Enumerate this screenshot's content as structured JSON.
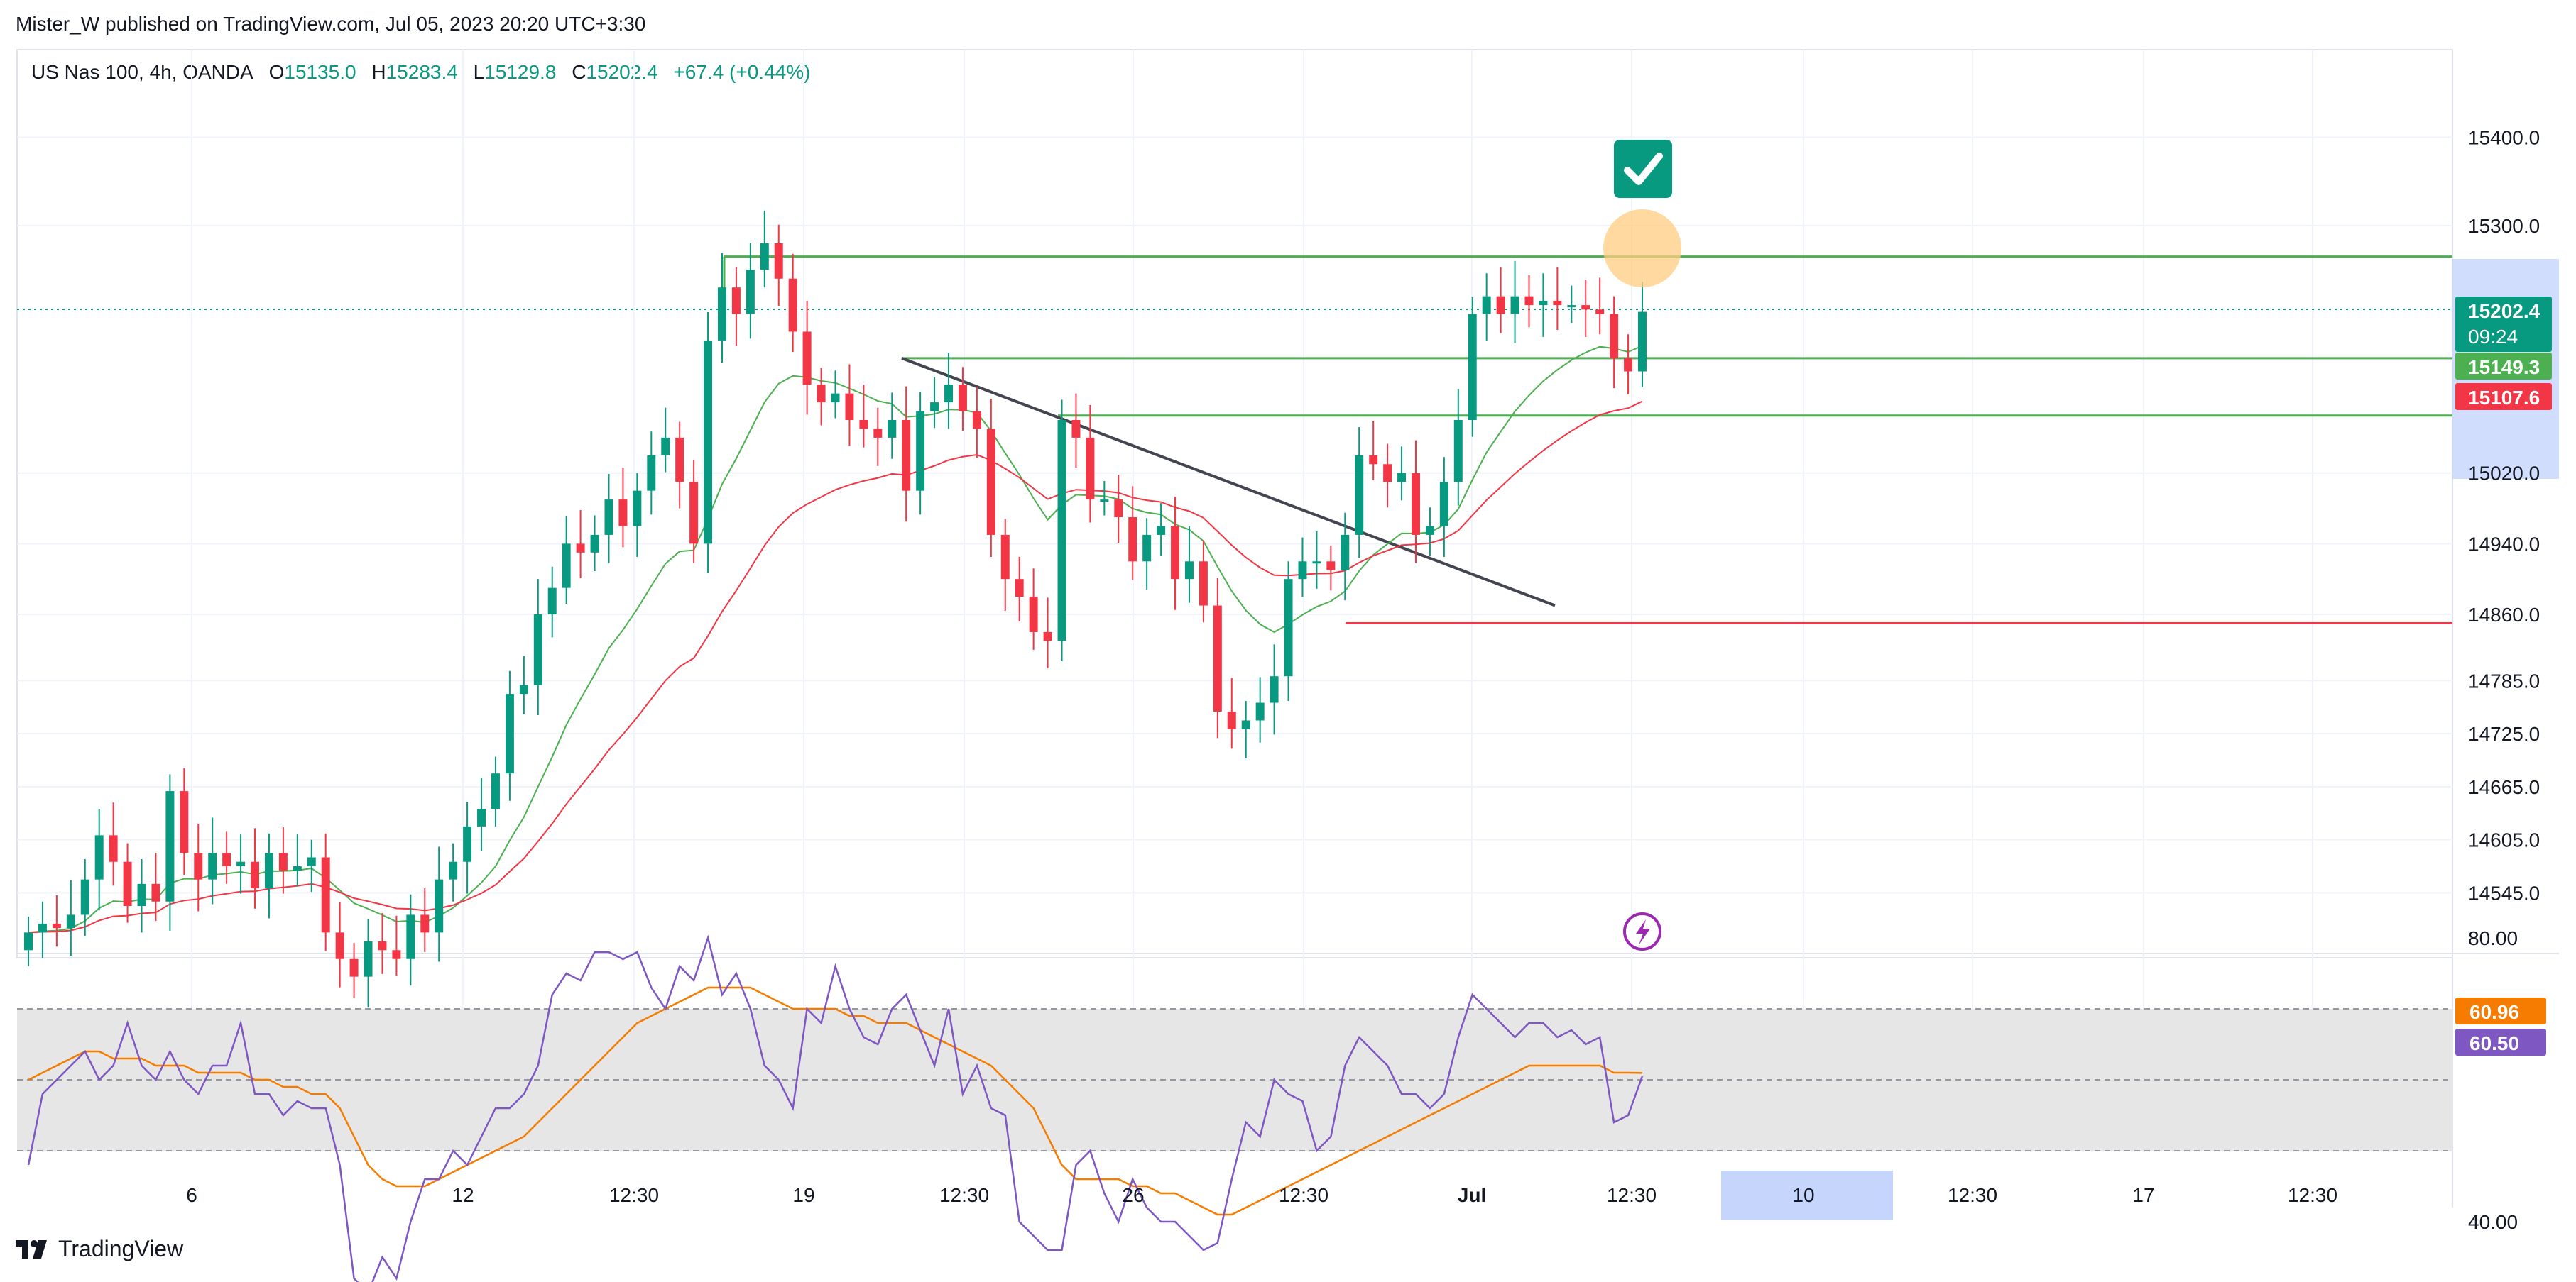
{
  "published": "Mister_W published on TradingView.com, Jul 05, 2023 20:20 UTC+3:30",
  "legend": {
    "symbol": "US Nas 100, 4h, OANDA",
    "o_label": "O",
    "o": "15135.0",
    "h_label": "H",
    "h": "15283.4",
    "l_label": "L",
    "l": "15129.8",
    "c_label": "C",
    "c": "15202.4",
    "change": "+67.4 (+0.44%)"
  },
  "price_tags": {
    "last": "15202.4",
    "countdown": "09:24",
    "ema_fast": "15149.3",
    "ema_slow": "15107.6"
  },
  "rsi_tags": {
    "ma": "60.96",
    "rsi": "60.50"
  },
  "brand": "TradingView",
  "colors": {
    "up": "#089981",
    "down": "#f23645",
    "level_line": "#4caf50",
    "red_level": "#f23645",
    "trend_line": "#434651",
    "rsi_line": "#7e57c2",
    "rsi_ma": "#f57c00",
    "ema_fast": "#4caf50",
    "ema_slow": "#f23645"
  },
  "icons": {
    "check": "check-badge-icon",
    "flash": "lightning-icon",
    "logo": "tradingview-logo-icon"
  },
  "chart_data": [
    {
      "type": "candlestick",
      "title": "US Nas 100, 4h, OANDA",
      "y_axis_ticks": [
        "15400.0",
        "15300.0",
        "15020.0",
        "14940.0",
        "14860.0",
        "14785.0",
        "14725.0",
        "14665.0",
        "14605.0",
        "14545.0"
      ],
      "x_axis_ticks": [
        "6",
        "12",
        "12:30",
        "19",
        "12:30",
        "26",
        "12:30",
        "Jul",
        "12:30",
        "10",
        "12:30",
        "17",
        "12:30"
      ],
      "highlighted_x_tick": "10",
      "ylim": [
        14500,
        15500
      ],
      "candles_close": [
        14500,
        14510,
        14505,
        14520,
        14560,
        14610,
        14580,
        14530,
        14555,
        14535,
        14660,
        14590,
        14560,
        14590,
        14575,
        14580,
        14550,
        14590,
        14570,
        14575,
        14585,
        14500,
        14470,
        14450,
        14490,
        14480,
        14470,
        14520,
        14500,
        14560,
        14580,
        14620,
        14640,
        14680,
        14770,
        14780,
        14860,
        14890,
        14940,
        14930,
        14950,
        14990,
        14960,
        15000,
        15040,
        15060,
        15010,
        14940,
        15170,
        15230,
        15200,
        15250,
        15280,
        15240,
        15180,
        15120,
        15100,
        15110,
        15080,
        15070,
        15060,
        15080,
        15000,
        15090,
        15100,
        15120,
        15090,
        15070,
        14950,
        14900,
        14880,
        14840,
        14830,
        15080,
        15060,
        14990,
        14990,
        14970,
        14920,
        14950,
        14960,
        14900,
        14920,
        14870,
        14750,
        14730,
        14740,
        14760,
        14790,
        14900,
        14920,
        14920,
        14910,
        14950,
        15040,
        15030,
        15010,
        15020,
        14950,
        14960,
        15010,
        15080,
        15200,
        15220,
        15200,
        15220,
        15210,
        15215,
        15210,
        15210,
        15205,
        15200,
        15150,
        15135,
        15202.4
      ],
      "candles_open": [
        14480,
        14500,
        14510,
        14505,
        14520,
        14560,
        14610,
        14580,
        14530,
        14555,
        14535,
        14660,
        14590,
        14560,
        14590,
        14575,
        14580,
        14550,
        14590,
        14570,
        14575,
        14585,
        14500,
        14470,
        14450,
        14490,
        14480,
        14470,
        14520,
        14500,
        14560,
        14580,
        14620,
        14640,
        14680,
        14770,
        14780,
        14860,
        14890,
        14940,
        14930,
        14950,
        14990,
        14960,
        15000,
        15040,
        15060,
        15010,
        14940,
        15170,
        15230,
        15200,
        15250,
        15280,
        15240,
        15180,
        15120,
        15100,
        15110,
        15080,
        15070,
        15060,
        15080,
        15000,
        15090,
        15100,
        15120,
        15090,
        15070,
        14950,
        14900,
        14880,
        14840,
        14830,
        15080,
        15060,
        14990,
        14990,
        14970,
        14920,
        14950,
        14960,
        14900,
        14920,
        14870,
        14750,
        14730,
        14740,
        14760,
        14790,
        14900,
        14920,
        14920,
        14910,
        14950,
        15040,
        15030,
        15010,
        15020,
        14950,
        14960,
        15010,
        15080,
        15200,
        15220,
        15200,
        15220,
        15210,
        15215,
        15210,
        15210,
        15205,
        15200,
        15150,
        15135
      ],
      "levels": [
        15265,
        15150,
        15085,
        14850
      ],
      "trend_line": [
        [
          1270,
          15150
        ],
        [
          2190,
          14870
        ]
      ]
    },
    {
      "type": "line",
      "title": "RSI",
      "y_axis_ticks": [
        "80.00",
        "40.00"
      ],
      "ylim": [
        30,
        85
      ],
      "band": [
        30,
        70
      ],
      "midline": 50,
      "series": [
        {
          "values": [
            48,
            58,
            60,
            62,
            64,
            60,
            62,
            68,
            62,
            60,
            64,
            60,
            58,
            62,
            62,
            68,
            58,
            58,
            55,
            57,
            56,
            56,
            48,
            32,
            30,
            35,
            32,
            40,
            46,
            46,
            50,
            48,
            52,
            56,
            56,
            58,
            62,
            72,
            75,
            74,
            78,
            78,
            77,
            78,
            73,
            70,
            76,
            74,
            80,
            72,
            75,
            70,
            62,
            60,
            56,
            70,
            68,
            76,
            70,
            66,
            65,
            70,
            72,
            67,
            62,
            70,
            58,
            62,
            56,
            55,
            40,
            38,
            36,
            36,
            48,
            50,
            44,
            40,
            46,
            42,
            40,
            40,
            38,
            36,
            37,
            46,
            54,
            52,
            60,
            58,
            57,
            50,
            52,
            62,
            66,
            64,
            62,
            58,
            58,
            56,
            58,
            66,
            72,
            70,
            68,
            66,
            68,
            68,
            66,
            67,
            65,
            66,
            54,
            55,
            60.5
          ]
        },
        {
          "values": [
            60,
            61,
            62,
            63,
            64,
            64,
            63,
            63,
            63,
            62,
            62,
            62,
            61,
            61,
            61,
            61,
            60,
            60,
            59,
            59,
            58,
            58,
            56,
            52,
            48,
            46,
            45,
            45,
            45,
            46,
            47,
            48,
            49,
            50,
            51,
            52,
            54,
            56,
            58,
            60,
            62,
            64,
            66,
            68,
            69,
            70,
            71,
            72,
            73,
            73,
            73,
            73,
            72,
            71,
            70,
            70,
            70,
            70,
            69,
            69,
            68,
            68,
            68,
            67,
            66,
            65,
            64,
            63,
            62,
            60,
            58,
            56,
            52,
            48,
            46,
            46,
            46,
            46,
            45,
            45,
            44,
            44,
            43,
            42,
            41,
            41,
            42,
            43,
            44,
            45,
            46,
            47,
            48,
            49,
            50,
            51,
            52,
            53,
            54,
            55,
            56,
            57,
            58,
            59,
            60,
            61,
            62,
            62,
            62,
            62,
            62,
            62,
            61,
            61,
            60.96
          ]
        }
      ]
    }
  ]
}
